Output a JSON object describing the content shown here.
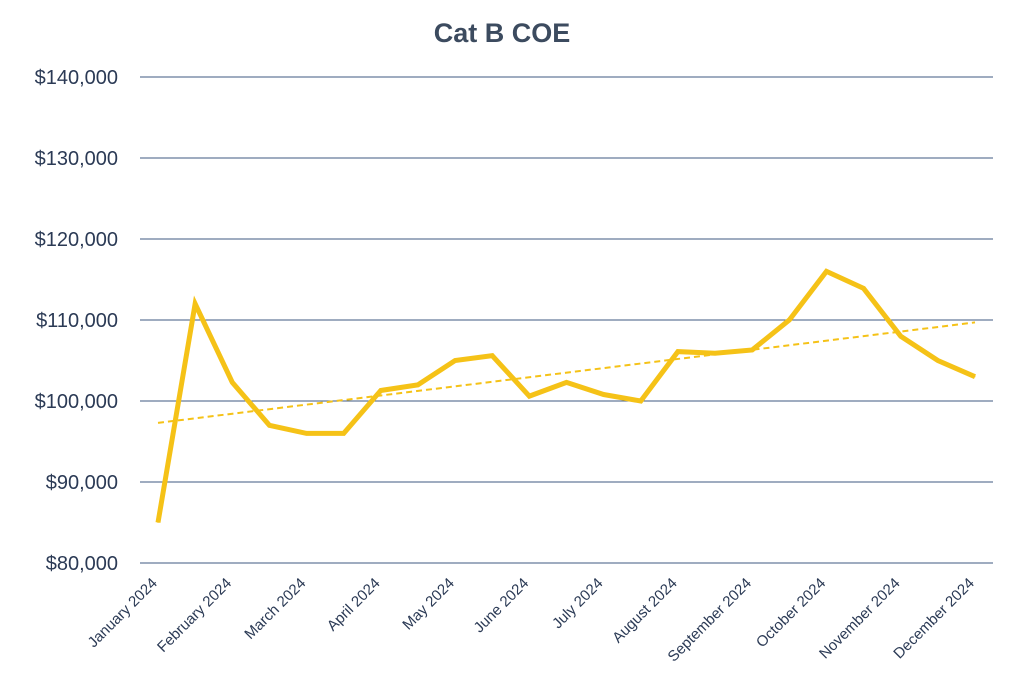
{
  "chart_data": {
    "type": "line",
    "title": "Cat B COE",
    "xlabel": "",
    "ylabel": "",
    "ylim": [
      80000,
      140000
    ],
    "y_ticks": [
      80000,
      90000,
      100000,
      110000,
      120000,
      130000,
      140000
    ],
    "y_tick_labels": [
      "$80,000",
      "$90,000",
      "$100,000",
      "$110,000",
      "$120,000",
      "$130,000",
      "$140,000"
    ],
    "x_tick_labels": [
      "January 2024",
      "February 2024",
      "March 2024",
      "April 2024",
      "May 2024",
      "June 2024",
      "July 2024",
      "August 2024",
      "September 2024",
      "October 2024",
      "November 2024",
      "December 2024"
    ],
    "grid": true,
    "series": [
      {
        "values": [
          85000,
          112000,
          102300,
          97000,
          96000,
          96000,
          101300,
          102000,
          105000,
          105600,
          100600,
          102300,
          100800,
          100000,
          106100,
          105900,
          106300,
          110000,
          116000,
          113900,
          108000,
          105000,
          103000
        ],
        "color": "#f5c217"
      }
    ],
    "trendline": {
      "style": "dashed",
      "color": "#f5c217",
      "start": 97300,
      "end": 109700
    }
  }
}
